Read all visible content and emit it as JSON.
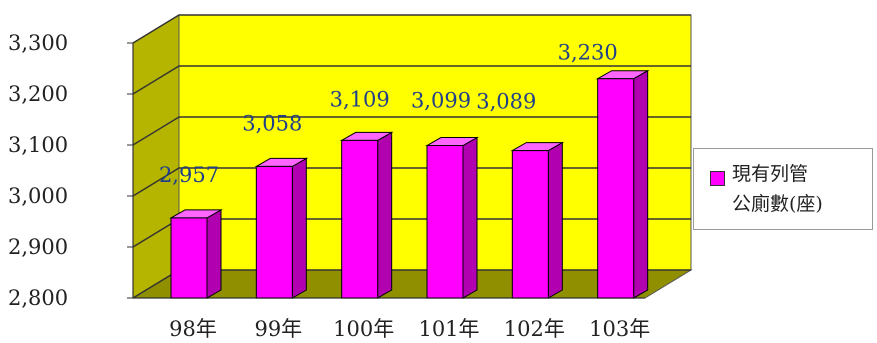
{
  "chart_data": {
    "type": "bar",
    "style": "3d-column",
    "categories": [
      "98年",
      "99年",
      "100年",
      "101年",
      "102年",
      "103年"
    ],
    "series": [
      {
        "name": "現有列管公廁數(座)",
        "values": [
          2957,
          3058,
          3109,
          3099,
          3089,
          3230
        ]
      }
    ],
    "data_labels": [
      "2,957",
      "3,058",
      "3,109",
      "3,099",
      "3,089",
      "3,230"
    ],
    "yticks": [
      "2,800",
      "2,900",
      "3,000",
      "3,100",
      "3,200",
      "3,300"
    ],
    "ylim": [
      2800,
      3300
    ],
    "grid": true,
    "legend_position": "right",
    "colors": {
      "bar_front": "#ff00ff",
      "bar_side": "#b000b0",
      "bar_top": "#ff66ff",
      "plot_back": "#ffff00",
      "plot_wall": "#b5b500",
      "plot_floor": "#8f8f00",
      "label": "#1f3f8a"
    }
  },
  "legend": {
    "label_line1": "現有列管",
    "label_line2": "公廁數(座)"
  }
}
